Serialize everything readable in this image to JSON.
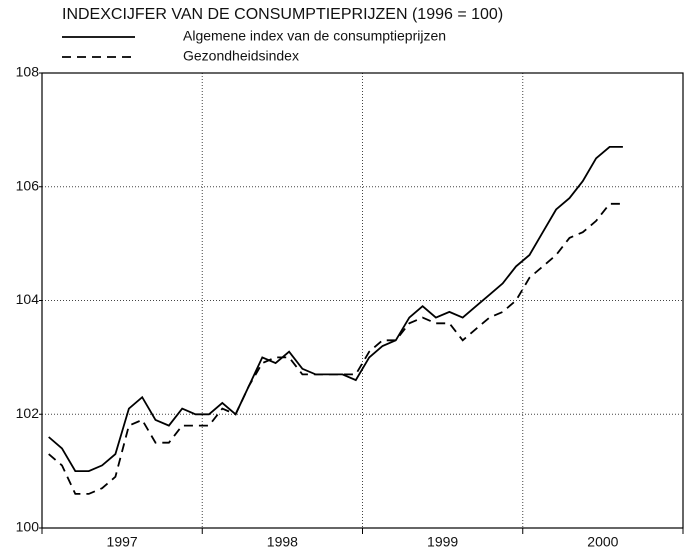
{
  "chart_data": {
    "type": "line",
    "title": "INDEXCIJFER VAN DE CONSUMPTIEPRIJZEN (1996 = 100)",
    "x": [
      1997.042,
      1997.125,
      1997.208,
      1997.292,
      1997.375,
      1997.458,
      1997.542,
      1997.625,
      1997.708,
      1997.792,
      1997.875,
      1997.958,
      1998.042,
      1998.125,
      1998.208,
      1998.292,
      1998.375,
      1998.458,
      1998.542,
      1998.625,
      1998.708,
      1998.792,
      1998.875,
      1998.958,
      1999.042,
      1999.125,
      1999.208,
      1999.292,
      1999.375,
      1999.458,
      1999.542,
      1999.625,
      1999.708,
      1999.792,
      1999.875,
      1999.958,
      2000.042,
      2000.125,
      2000.208,
      2000.292,
      2000.375,
      2000.458,
      2000.542,
      2000.625
    ],
    "series": [
      {
        "name": "Algemene index van de consumptieprijzen",
        "color": "#000000",
        "dash": "solid",
        "values": [
          101.6,
          101.4,
          101.0,
          101.0,
          101.1,
          101.3,
          102.1,
          102.3,
          101.9,
          101.8,
          102.1,
          102.0,
          102.0,
          102.2,
          102.0,
          102.5,
          103.0,
          102.9,
          103.1,
          102.8,
          102.7,
          102.7,
          102.7,
          102.6,
          103.0,
          103.2,
          103.3,
          103.7,
          103.9,
          103.7,
          103.8,
          103.7,
          103.9,
          104.1,
          104.3,
          104.6,
          104.8,
          105.2,
          105.6,
          105.8,
          106.1,
          106.5,
          106.7,
          106.7
        ]
      },
      {
        "name": "Gezondheidsindex",
        "color": "#000000",
        "dash": "dashed",
        "values": [
          101.3,
          101.1,
          100.6,
          100.6,
          100.7,
          100.9,
          101.8,
          101.9,
          101.5,
          101.5,
          101.8,
          101.8,
          101.8,
          102.1,
          102.0,
          102.5,
          102.9,
          103.0,
          103.0,
          102.7,
          102.7,
          102.7,
          102.7,
          102.7,
          103.1,
          103.3,
          103.3,
          103.6,
          103.7,
          103.6,
          103.6,
          103.3,
          103.5,
          103.7,
          103.8,
          104.0,
          104.4,
          104.6,
          104.8,
          105.1,
          105.2,
          105.4,
          105.7,
          105.7
        ]
      }
    ],
    "xlim": [
      1997,
      2001
    ],
    "xticks": [
      1997,
      1998,
      1999,
      2000,
      2001
    ],
    "xlabels": [
      {
        "value": 1997.5,
        "label": "1997"
      },
      {
        "value": 1998.5,
        "label": "1998"
      },
      {
        "value": 1999.5,
        "label": "1999"
      },
      {
        "value": 2000.5,
        "label": "2000"
      }
    ],
    "ylim": [
      100,
      108
    ],
    "yticks": [
      100,
      102,
      104,
      106,
      108
    ],
    "grid": true,
    "legend": "top-left"
  }
}
